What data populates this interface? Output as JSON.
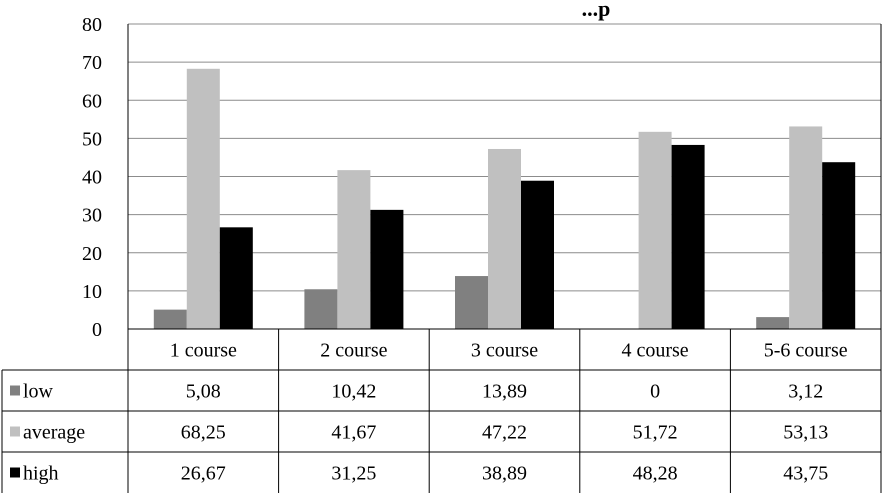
{
  "chart_data": {
    "type": "bar",
    "title": "...p",
    "categories": [
      "1 course",
      "2 course",
      "3 course",
      "4 course",
      "5-6 course"
    ],
    "series": [
      {
        "name": "low",
        "values": [
          5.08,
          10.42,
          13.89,
          0,
          3.12
        ],
        "labels": [
          "5,08",
          "10,42",
          "13,89",
          "0",
          "3,12"
        ],
        "color": "#808080"
      },
      {
        "name": "average",
        "values": [
          68.25,
          41.67,
          47.22,
          51.72,
          53.13
        ],
        "labels": [
          "68,25",
          "41,67",
          "47,22",
          "51,72",
          "53,13"
        ],
        "color": "#c0c0c0"
      },
      {
        "name": "high",
        "values": [
          26.67,
          31.25,
          38.89,
          48.28,
          43.75
        ],
        "labels": [
          "26,67",
          "31,25",
          "38,89",
          "48,28",
          "43,75"
        ],
        "color": "#000000"
      }
    ],
    "ylim": [
      0,
      80
    ],
    "yticks": [
      "0",
      "10",
      "20",
      "30",
      "40",
      "50",
      "60",
      "70",
      "80"
    ],
    "grid": true,
    "legend": "data-table-left"
  }
}
